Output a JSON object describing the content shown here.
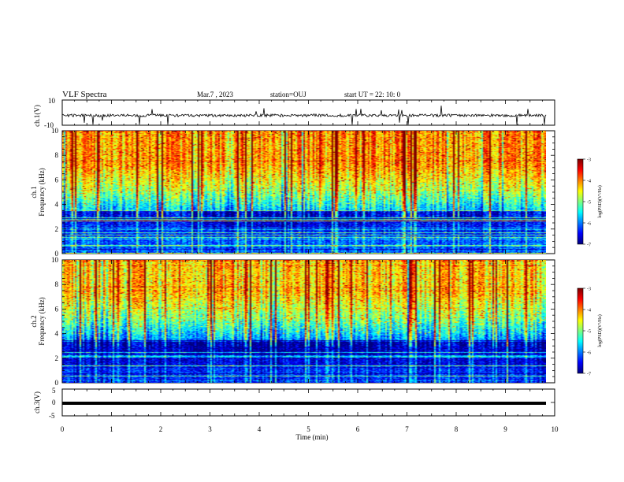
{
  "header": {
    "title": "VLF Spectra",
    "date": "Mar.7 , 2023",
    "station": "station=OUJ",
    "start": "start UT = 22: 10: 0"
  },
  "chart_data": [
    {
      "type": "line",
      "ylabel": "ch.1(V)",
      "xlim": [
        0,
        10
      ],
      "ylim": [
        -10,
        10
      ],
      "yticks": [
        "10",
        "-10"
      ]
    },
    {
      "type": "heatmap",
      "ylabel_lines": [
        "ch.1",
        "Frequency (kHz)"
      ],
      "xlim": [
        0,
        10
      ],
      "ylim": [
        0,
        10
      ],
      "yticks": [
        "0",
        "2",
        "4",
        "6",
        "8",
        "10"
      ],
      "colorbar": {
        "label": "log(PSD)(V²/Hz)",
        "range": [
          -7,
          -3
        ],
        "ticks": [
          "-3",
          "-4",
          "-5",
          "-6",
          "-7"
        ]
      }
    },
    {
      "type": "heatmap",
      "ylabel_lines": [
        "ch.2",
        "Frequency (kHz)"
      ],
      "xlim": [
        0,
        10
      ],
      "ylim": [
        0,
        10
      ],
      "yticks": [
        "0",
        "2",
        "4",
        "6",
        "8",
        "10"
      ],
      "colorbar": {
        "label": "log(PSD)(V²/Hz)",
        "range": [
          -7,
          -3
        ],
        "ticks": [
          "-3",
          "-4",
          "-5",
          "-6",
          "-7"
        ]
      }
    },
    {
      "type": "line",
      "ylabel": "ch.3(V)",
      "xlim": [
        0,
        10
      ],
      "ylim": [
        -5,
        5
      ],
      "yticks": [
        "5",
        "0",
        "-5"
      ],
      "xlabel": "Time (min)",
      "xticks": [
        "0",
        "1",
        "2",
        "3",
        "4",
        "5",
        "6",
        "7",
        "8",
        "9",
        "10"
      ]
    }
  ]
}
